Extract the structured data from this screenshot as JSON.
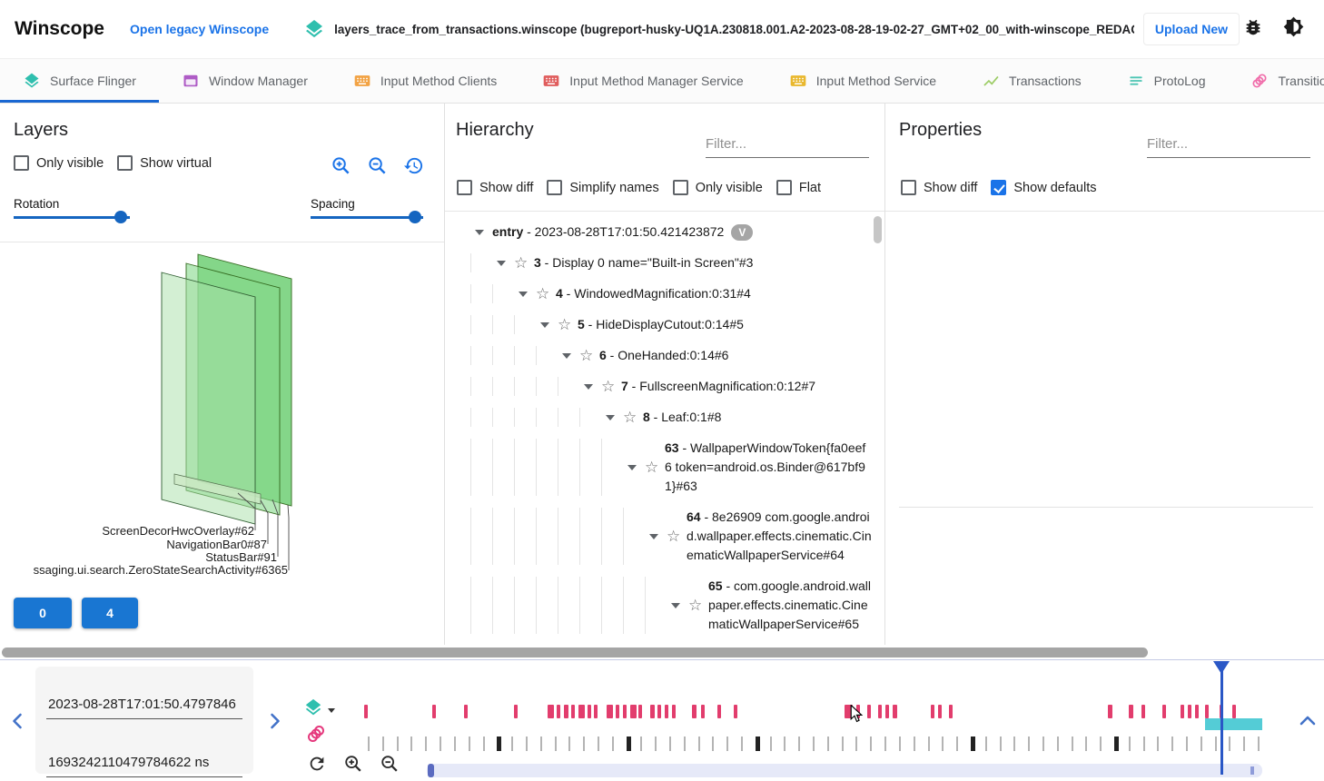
{
  "header": {
    "app_title": "Winscope",
    "legacy_link": "Open legacy Winscope",
    "file_name": "layers_trace_from_transactions.winscope (bugreport-husky-UQ1A.230818.001.A2-2023-08-28-19-02-27_GMT+02_00_with-winscope_REDACTED.zip)",
    "upload_button": "Upload New"
  },
  "tabs": [
    {
      "label": "Surface Flinger",
      "icon": "layers",
      "color": "#2fbfae",
      "active": true
    },
    {
      "label": "Window Manager",
      "icon": "window",
      "color": "#af5cc6",
      "active": false
    },
    {
      "label": "Input Method Clients",
      "icon": "keyboard",
      "color": "#f2a243",
      "active": false
    },
    {
      "label": "Input Method Manager Service",
      "icon": "keyboard",
      "color": "#e05d5d",
      "active": false
    },
    {
      "label": "Input Method Service",
      "icon": "keyboard",
      "color": "#e9b82e",
      "active": false
    },
    {
      "label": "Transactions",
      "icon": "chart",
      "color": "#9ccc65",
      "active": false
    },
    {
      "label": "ProtoLog",
      "icon": "list",
      "color": "#4dc5b4",
      "active": false
    },
    {
      "label": "Transitions",
      "icon": "circles",
      "color": "#f06daa",
      "active": false
    }
  ],
  "layers_panel": {
    "title": "Layers",
    "checkboxes": [
      {
        "label": "Only visible",
        "checked": false
      },
      {
        "label": "Show virtual",
        "checked": false
      }
    ],
    "rotation_label": "Rotation",
    "spacing_label": "Spacing",
    "layer_labels": [
      "ScreenDecorHwcOverlay#62",
      "NavigationBar0#87",
      "StatusBar#91",
      "ssaging.ui.search.ZeroStateSearchActivity#6365"
    ],
    "buttons": [
      "0",
      "4"
    ]
  },
  "hierarchy_panel": {
    "title": "Hierarchy",
    "filter_placeholder": "Filter...",
    "checkboxes": [
      {
        "label": "Show diff",
        "checked": false
      },
      {
        "label": "Simplify names",
        "checked": false
      },
      {
        "label": "Only visible",
        "checked": false
      },
      {
        "label": "Flat",
        "checked": false
      }
    ],
    "tree": [
      {
        "level": 0,
        "id": "entry",
        "text": " - 2023-08-28T17:01:50.421423872",
        "chip": "V",
        "star": false
      },
      {
        "level": 1,
        "id": "3",
        "text": " - Display 0 name=\"Built-in Screen\"#3",
        "star": true
      },
      {
        "level": 2,
        "id": "4",
        "text": " - WindowedMagnification:0:31#4",
        "star": true
      },
      {
        "level": 3,
        "id": "5",
        "text": " - HideDisplayCutout:0:14#5",
        "star": true
      },
      {
        "level": 4,
        "id": "6",
        "text": " - OneHanded:0:14#6",
        "star": true
      },
      {
        "level": 5,
        "id": "7",
        "text": " - FullscreenMagnification:0:12#7",
        "star": true
      },
      {
        "level": 6,
        "id": "8",
        "text": " - Leaf:0:1#8",
        "star": true
      },
      {
        "level": 7,
        "id": "63",
        "text": " - WallpaperWindowToken{fa0eef6 token=android.os.Binder@617bf91}#63",
        "star": true
      },
      {
        "level": 8,
        "id": "64",
        "text": " - 8e26909 com.google.android.wallpaper.effects.cinematic.CinematicWallpaperService#64",
        "star": true
      },
      {
        "level": 9,
        "id": "65",
        "text": " - com.google.android.wallpaper.effects.cinematic.CinematicWallpaperService#65",
        "star": true
      }
    ]
  },
  "properties_panel": {
    "title": "Properties",
    "filter_placeholder": "Filter...",
    "checkboxes": [
      {
        "label": "Show diff",
        "checked": false
      },
      {
        "label": "Show defaults",
        "checked": true
      }
    ]
  },
  "timeline": {
    "selected_time": "2023-08-28T17:01:50.4797846",
    "selected_time_ns": "1693242110479784622 ns",
    "sf_ticks": [
      [
        0.001,
        4
      ],
      [
        0.077,
        4
      ],
      [
        0.112,
        4
      ],
      [
        0.168,
        4
      ],
      [
        0.205,
        7
      ],
      [
        0.215,
        4
      ],
      [
        0.223,
        5
      ],
      [
        0.231,
        4
      ],
      [
        0.239,
        7
      ],
      [
        0.249,
        4
      ],
      [
        0.257,
        4
      ],
      [
        0.271,
        7
      ],
      [
        0.281,
        4
      ],
      [
        0.289,
        4
      ],
      [
        0.297,
        7
      ],
      [
        0.306,
        4
      ],
      [
        0.319,
        5
      ],
      [
        0.327,
        4
      ],
      [
        0.335,
        4
      ],
      [
        0.343,
        4
      ],
      [
        0.366,
        5
      ],
      [
        0.376,
        4
      ],
      [
        0.394,
        4
      ],
      [
        0.412,
        4
      ],
      [
        0.535,
        9
      ],
      [
        0.548,
        4
      ],
      [
        0.561,
        4
      ],
      [
        0.573,
        4
      ],
      [
        0.581,
        4
      ],
      [
        0.589,
        5
      ],
      [
        0.631,
        4
      ],
      [
        0.639,
        4
      ],
      [
        0.651,
        4
      ],
      [
        0.828,
        5
      ],
      [
        0.851,
        5
      ],
      [
        0.866,
        4
      ],
      [
        0.889,
        4
      ],
      [
        0.909,
        4
      ],
      [
        0.917,
        4
      ],
      [
        0.925,
        4
      ],
      [
        0.936,
        4
      ],
      [
        0.952,
        4
      ],
      [
        0.967,
        4
      ]
    ],
    "transition_ticks": {
      "count": 63,
      "bold_indices": [
        9,
        18,
        27,
        42,
        52
      ]
    },
    "playhead_frac": 0.9545,
    "selection_start_frac": 0.936,
    "selection_end_frac": 1.0,
    "colors": {
      "sf_tick": "#e23d6d",
      "selection": "#41c7d2",
      "playhead": "#2a57c6",
      "accent": "#1a73e8"
    }
  }
}
